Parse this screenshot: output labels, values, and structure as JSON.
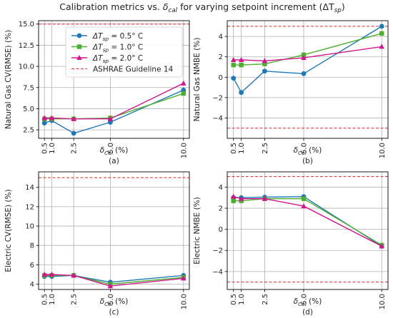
{
  "figure": {
    "title_parts": [
      "Calibration metrics vs. ",
      "δ",
      "cal",
      " for varying setpoint increment (",
      "ΔT",
      "sp",
      ")"
    ]
  },
  "colors": {
    "series_0_5": "#1f77b4",
    "series_1_0": "#4daf2e",
    "series_2_0": "#d0158f",
    "guideline": "#d62728",
    "grid": "#b0b0b0",
    "axes": "#000000"
  },
  "chart_data": [
    {
      "type": "line",
      "panel_label": "(a)",
      "xlabel_parts": [
        "δ",
        "Cal",
        " (%)"
      ],
      "ylabel": "Natural Gas CV(RMSE) (%)",
      "x": [
        0.5,
        1.0,
        2.5,
        5.0,
        10.0
      ],
      "xticks": [
        "0.5",
        "1.0",
        "2.5",
        "5.0",
        "10.0"
      ],
      "xlim": [
        0.1,
        10.4
      ],
      "ylim": [
        1.5,
        15.4
      ],
      "yticks": [
        "2.5",
        "5.0",
        "7.5",
        "10.0",
        "12.5",
        "15.0"
      ],
      "grid": true,
      "guideline": 15,
      "legend": {
        "placement": "upper-center",
        "entries": [
          {
            "label_parts": [
              "ΔT",
              "sp",
              " = 0.5° C"
            ],
            "kind": "series",
            "series": 0
          },
          {
            "label_parts": [
              "ΔT",
              "sp",
              " = 1.0° C"
            ],
            "kind": "series",
            "series": 1
          },
          {
            "label_parts": [
              "ΔT",
              "sp",
              " = 2.0° C"
            ],
            "kind": "series",
            "series": 2
          },
          {
            "label_parts": [
              "ASHRAE Guideline 14",
              "",
              ""
            ],
            "kind": "guideline"
          }
        ]
      },
      "series": [
        {
          "name": "ΔTsp = 0.5° C",
          "values": [
            3.3,
            3.6,
            2.1,
            3.4,
            7.2
          ]
        },
        {
          "name": "ΔTsp = 1.0° C",
          "values": [
            3.8,
            3.8,
            3.8,
            3.9,
            6.8
          ]
        },
        {
          "name": "ΔTsp = 2.0° C",
          "values": [
            3.9,
            3.9,
            3.8,
            3.8,
            8.0
          ]
        }
      ]
    },
    {
      "type": "line",
      "panel_label": "(b)",
      "xlabel_parts": [
        "δ",
        "Cal",
        " (%)"
      ],
      "ylabel": "Natural Gas NMBE (%)",
      "x": [
        0.5,
        1.0,
        2.5,
        5.0,
        10.0
      ],
      "xticks": [
        "0.5",
        "1.0",
        "2.5",
        "5.0",
        "10.0"
      ],
      "xlim": [
        0.1,
        10.4
      ],
      "ylim": [
        -6.0,
        5.55
      ],
      "yticks": [
        "−4",
        "−2",
        "0",
        "2",
        "4"
      ],
      "ytick_values": [
        -4,
        -2,
        0,
        2,
        4
      ],
      "grid": true,
      "guidelines": [
        5,
        -5
      ],
      "series": [
        {
          "name": "ΔTsp = 0.5° C",
          "values": [
            -0.1,
            -1.5,
            0.6,
            0.35,
            5.0
          ]
        },
        {
          "name": "ΔTsp = 1.0° C",
          "values": [
            1.2,
            1.2,
            1.3,
            2.2,
            4.3
          ]
        },
        {
          "name": "ΔTsp = 2.0° C",
          "values": [
            1.7,
            1.7,
            1.6,
            1.9,
            3.0
          ]
        }
      ]
    },
    {
      "type": "line",
      "panel_label": "(c)",
      "xlabel_parts": [
        "δ",
        "Cal",
        " (%)"
      ],
      "ylabel": "Electric CV(RMSE) (%)",
      "x": [
        0.5,
        1.0,
        2.5,
        5.0,
        10.0
      ],
      "xticks": [
        "0.5",
        "1.0",
        "2.5",
        "5.0",
        "10.0"
      ],
      "xlim": [
        0.1,
        10.4
      ],
      "ylim": [
        3.45,
        15.6
      ],
      "yticks": [
        "4",
        "6",
        "8",
        "10",
        "12",
        "14"
      ],
      "ytick_values": [
        4,
        6,
        8,
        10,
        12,
        14
      ],
      "grid": true,
      "guideline": 15,
      "series": [
        {
          "name": "ΔTsp = 0.5° C",
          "values": [
            4.8,
            4.8,
            4.9,
            4.2,
            4.9
          ]
        },
        {
          "name": "ΔTsp = 1.0° C",
          "values": [
            4.9,
            4.9,
            4.9,
            4.0,
            4.7
          ]
        },
        {
          "name": "ΔTsp = 2.0° C",
          "values": [
            5.0,
            5.0,
            4.9,
            3.8,
            4.6
          ]
        }
      ]
    },
    {
      "type": "line",
      "panel_label": "(d)",
      "xlabel_parts": [
        "δ",
        "Cal",
        " (%)"
      ],
      "ylabel": "Electric NMBE (%)",
      "x": [
        0.5,
        1.0,
        2.5,
        5.0,
        10.0
      ],
      "xticks": [
        "0.5",
        "1.0",
        "2.5",
        "5.0",
        "10.0"
      ],
      "xlim": [
        0.1,
        10.4
      ],
      "ylim": [
        -5.7,
        5.45
      ],
      "yticks": [
        "−4",
        "−2",
        "0",
        "2",
        "4"
      ],
      "ytick_values": [
        -4,
        -2,
        0,
        2,
        4
      ],
      "grid": true,
      "guidelines": [
        5,
        -5
      ],
      "series": [
        {
          "name": "ΔTsp = 0.5° C",
          "values": [
            3.0,
            3.0,
            3.05,
            3.1,
            -1.6
          ]
        },
        {
          "name": "ΔTsp = 1.0° C",
          "values": [
            2.7,
            2.7,
            2.9,
            2.9,
            -1.5
          ]
        },
        {
          "name": "ΔTsp = 2.0° C",
          "values": [
            3.1,
            2.9,
            2.9,
            2.2,
            -1.6
          ]
        }
      ]
    }
  ]
}
